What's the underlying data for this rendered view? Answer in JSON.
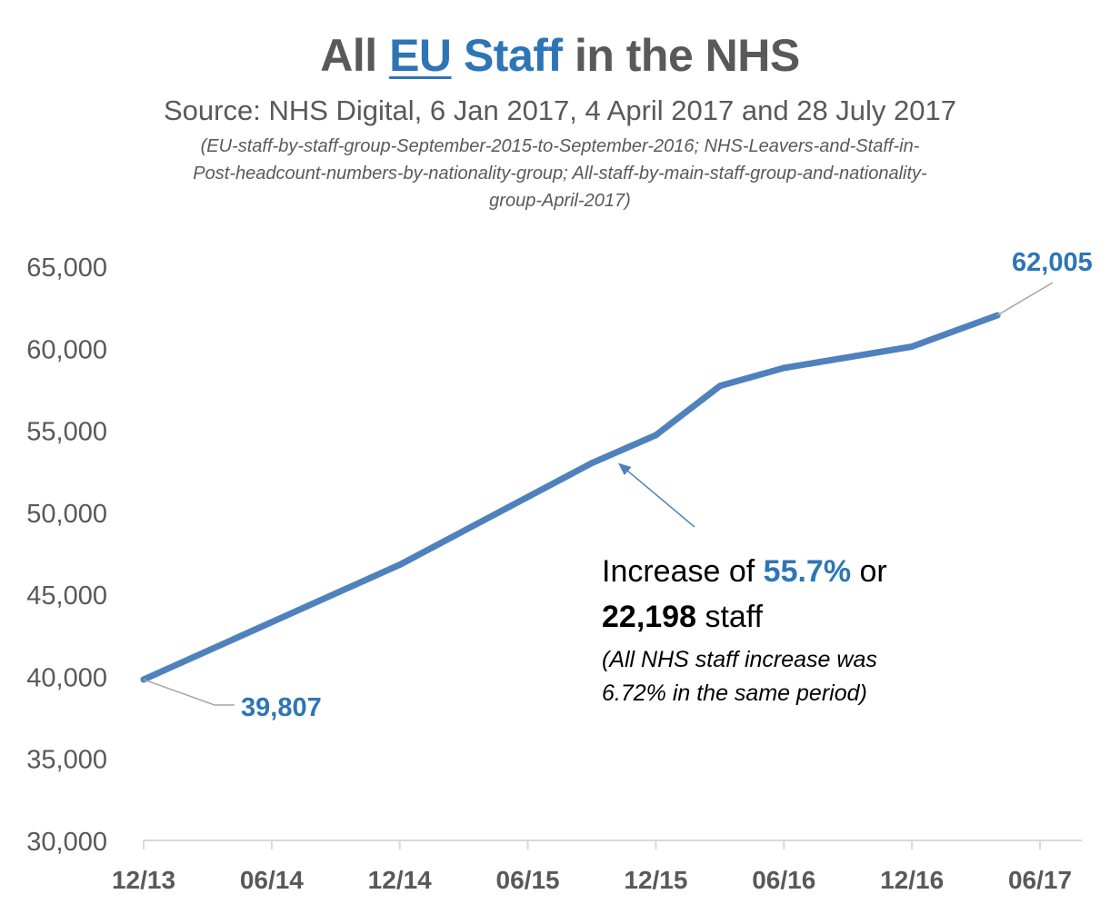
{
  "header": {
    "title_pre": "All",
    "title_eu": "EU",
    "title_staff": "Staff",
    "title_post": "in the NHS",
    "subtitle": "Source: NHS Digital, 6 Jan 2017, 4 April 2017 and 28 July 2017",
    "note_line1": "(EU-staff-by-staff-group-September-2015-to-September-2016; NHS-Leavers-and-Staff-in-",
    "note_line2": "Post-headcount-numbers-by-nationality-group; All-staff-by-main-staff-group-and-nationality-",
    "note_line3": "group-April-2017)"
  },
  "annotation": {
    "line1_pre": "Increase of ",
    "pct": "55.7%",
    "line1_post": " or",
    "count": "22,198",
    "line2_post": " staff",
    "line3": "(All NHS staff increase was",
    "line4": "6.72% in the same period)"
  },
  "colors": {
    "line": "#4F81BD",
    "accent": "#2E75B6",
    "text": "#595959",
    "axis": "#D9D9D9",
    "leader": "#A6A6A6"
  },
  "chart_data": {
    "type": "line",
    "title": "All EU Staff in the NHS",
    "xlabel": "",
    "ylabel": "",
    "ylim": [
      30000,
      65000
    ],
    "yticks": [
      30000,
      35000,
      40000,
      45000,
      50000,
      55000,
      60000,
      65000
    ],
    "ytick_labels": [
      "30,000",
      "35,000",
      "40,000",
      "45,000",
      "50,000",
      "55,000",
      "60,000",
      "65,000"
    ],
    "xlim_months": [
      0,
      42
    ],
    "xticks_months": [
      0,
      6,
      12,
      18,
      24,
      30,
      36,
      42
    ],
    "xtick_labels": [
      "12/13",
      "06/14",
      "12/14",
      "06/15",
      "12/15",
      "06/16",
      "12/16",
      "06/17"
    ],
    "series": [
      {
        "name": "All EU Staff",
        "months": [
          0,
          12,
          21,
          24,
          27,
          30,
          36,
          40
        ],
        "values": [
          39807,
          46800,
          53000,
          54700,
          57700,
          58800,
          60100,
          62005
        ]
      }
    ],
    "data_labels": [
      {
        "text": "39,807",
        "month": 0,
        "value": 39807
      },
      {
        "text": "62,005",
        "month": 40,
        "value": 62005
      }
    ]
  }
}
